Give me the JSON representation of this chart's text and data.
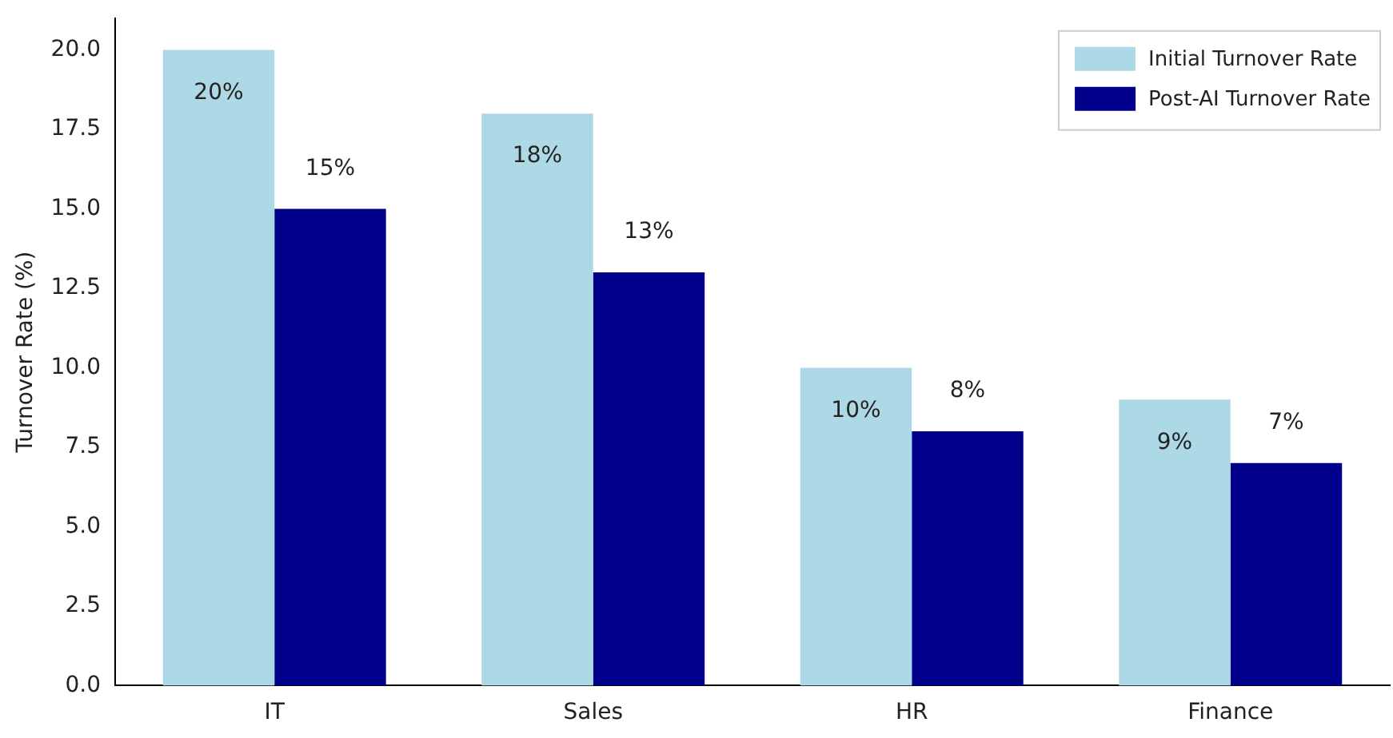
{
  "chart_data": {
    "type": "bar",
    "ylabel": "Turnover Rate (%)",
    "categories": [
      "IT",
      "Sales",
      "HR",
      "Finance"
    ],
    "series": [
      {
        "name": "Initial Turnover Rate",
        "color": "#add8e6",
        "values": [
          20,
          18,
          10,
          9
        ],
        "value_labels": [
          "20%",
          "18%",
          "10%",
          "9%"
        ]
      },
      {
        "name": "Post-AI Turnover Rate",
        "color": "#00008b",
        "values": [
          15,
          13,
          8,
          7
        ],
        "value_labels": [
          "15%",
          "13%",
          "8%",
          "7%"
        ]
      }
    ],
    "ylim": [
      0,
      21
    ],
    "yticks": [
      {
        "value": 0,
        "label": "0.0"
      },
      {
        "value": 2.5,
        "label": "2.5"
      },
      {
        "value": 5,
        "label": "5.0"
      },
      {
        "value": 7.5,
        "label": "7.5"
      },
      {
        "value": 10,
        "label": "10.0"
      },
      {
        "value": 12.5,
        "label": "12.5"
      },
      {
        "value": 15,
        "label": "15.0"
      },
      {
        "value": 17.5,
        "label": "17.5"
      },
      {
        "value": 20,
        "label": "20.0"
      }
    ],
    "grid": false,
    "legend": "top right"
  }
}
